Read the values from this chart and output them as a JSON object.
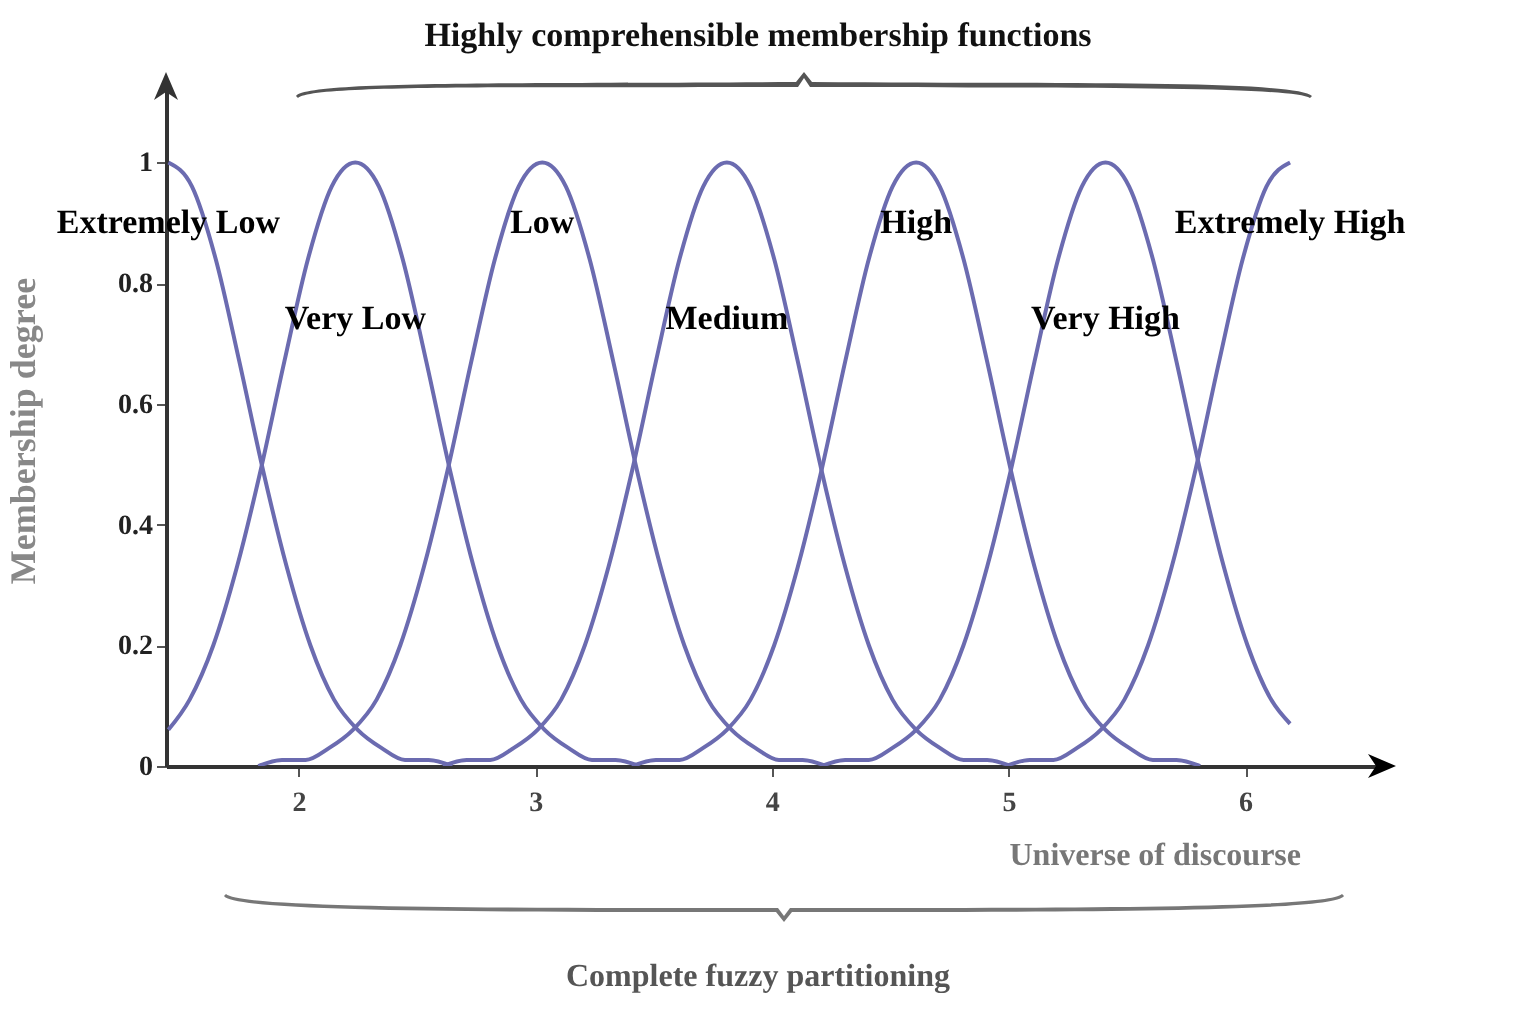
{
  "chart_data": {
    "type": "line",
    "title": "Highly comprehensible membership functions",
    "xlabel": "Universe of discourse",
    "ylabel": "Membership degree",
    "annotations": [
      "Complete fuzzy partitioning"
    ],
    "xlim": [
      1.44,
      6.57
    ],
    "ylim": [
      0,
      1.12
    ],
    "xticks": [
      2,
      3,
      4,
      5,
      6
    ],
    "yticks": [
      0,
      0.2,
      0.4,
      0.6,
      0.8,
      1
    ],
    "grid": false,
    "legend": false,
    "marker": "none",
    "line_style": "solid",
    "series": [
      {
        "name": "Extremely Low",
        "color": "#6b6bb0",
        "x": [
          1.45,
          1.55,
          1.65,
          1.75,
          1.85,
          1.95,
          2.05,
          2.15,
          2.25,
          2.35,
          2.45,
          2.55,
          2.65
        ],
        "values": [
          1,
          0.96,
          0.84,
          0.67,
          0.49,
          0.33,
          0.2,
          0.11,
          0.06,
          0.03,
          0.01,
          0.01,
          0
        ]
      },
      {
        "name": "Very Low",
        "color": "#6b6bb0",
        "x": [
          1.45,
          1.54,
          1.64,
          1.74,
          1.84,
          1.94,
          2.04,
          2.14,
          2.24,
          2.34,
          2.44,
          2.54,
          2.64,
          2.74,
          2.84,
          2.94,
          3.04,
          3.14,
          3.24,
          3.34,
          3.44
        ],
        "values": [
          0.06,
          0.11,
          0.2,
          0.33,
          0.49,
          0.67,
          0.84,
          0.96,
          1,
          0.96,
          0.84,
          0.67,
          0.49,
          0.33,
          0.2,
          0.11,
          0.06,
          0.03,
          0.01,
          0.01,
          0
        ]
      },
      {
        "name": "Low",
        "color": "#6b6bb0",
        "x": [
          1.83,
          1.93,
          2.03,
          2.13,
          2.23,
          2.33,
          2.43,
          2.53,
          2.63,
          2.73,
          2.83,
          2.93,
          3.03,
          3.13,
          3.23,
          3.33,
          3.43,
          3.53,
          3.63,
          3.73,
          3.83,
          3.93,
          4.03,
          4.13,
          4.23
        ],
        "values": [
          0,
          0.01,
          0.01,
          0.03,
          0.06,
          0.11,
          0.2,
          0.33,
          0.49,
          0.67,
          0.84,
          0.96,
          1,
          0.96,
          0.84,
          0.67,
          0.49,
          0.33,
          0.2,
          0.11,
          0.06,
          0.03,
          0.01,
          0.01,
          0
        ]
      },
      {
        "name": "Medium",
        "color": "#6b6bb0",
        "x": [
          2.61,
          2.71,
          2.81,
          2.91,
          3.01,
          3.11,
          3.21,
          3.31,
          3.41,
          3.51,
          3.61,
          3.71,
          3.81,
          3.91,
          4.01,
          4.11,
          4.21,
          4.31,
          4.41,
          4.51,
          4.61,
          4.71,
          4.81,
          4.91,
          5.01
        ],
        "values": [
          0,
          0.01,
          0.01,
          0.03,
          0.06,
          0.11,
          0.2,
          0.33,
          0.49,
          0.67,
          0.84,
          0.96,
          1,
          0.96,
          0.84,
          0.67,
          0.49,
          0.33,
          0.2,
          0.11,
          0.06,
          0.03,
          0.01,
          0.01,
          0
        ]
      },
      {
        "name": "High",
        "color": "#6b6bb0",
        "x": [
          3.41,
          3.51,
          3.61,
          3.71,
          3.81,
          3.91,
          4.01,
          4.11,
          4.21,
          4.31,
          4.41,
          4.51,
          4.61,
          4.71,
          4.81,
          4.91,
          5.01,
          5.11,
          5.21,
          5.31,
          5.41,
          5.51,
          5.61,
          5.71,
          5.81
        ],
        "values": [
          0,
          0.01,
          0.01,
          0.03,
          0.06,
          0.11,
          0.2,
          0.33,
          0.49,
          0.67,
          0.84,
          0.96,
          1,
          0.96,
          0.84,
          0.67,
          0.49,
          0.33,
          0.2,
          0.11,
          0.06,
          0.03,
          0.01,
          0.01,
          0
        ]
      },
      {
        "name": "Very High",
        "color": "#6b6bb0",
        "x": [
          4.21,
          4.31,
          4.41,
          4.51,
          4.61,
          4.71,
          4.81,
          4.91,
          5.01,
          5.11,
          5.21,
          5.31,
          5.41,
          5.51,
          5.61,
          5.71,
          5.81,
          5.91,
          6.01,
          6.11,
          6.19
        ],
        "values": [
          0,
          0.01,
          0.01,
          0.03,
          0.06,
          0.11,
          0.2,
          0.33,
          0.49,
          0.67,
          0.84,
          0.96,
          1,
          0.96,
          0.84,
          0.67,
          0.49,
          0.33,
          0.2,
          0.11,
          0.07
        ]
      },
      {
        "name": "Extremely High",
        "color": "#6b6bb0",
        "x": [
          4.99,
          5.09,
          5.19,
          5.29,
          5.39,
          5.49,
          5.59,
          5.69,
          5.79,
          5.89,
          5.99,
          6.09,
          6.19
        ],
        "values": [
          0,
          0.01,
          0.01,
          0.03,
          0.06,
          0.11,
          0.2,
          0.33,
          0.49,
          0.67,
          0.84,
          0.96,
          1
        ]
      }
    ]
  }
}
